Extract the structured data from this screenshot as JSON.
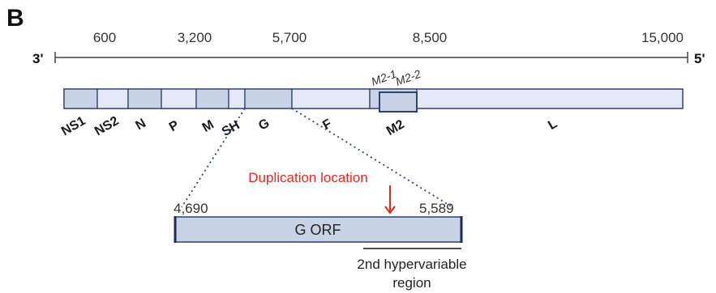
{
  "panel_label": "B",
  "scale": {
    "left_end": "3'",
    "right_end": "5'",
    "ticks": [
      "600",
      "3,200",
      "5,700",
      "8,500",
      "15,000"
    ]
  },
  "genes": [
    "NS1",
    "NS2",
    "N",
    "P",
    "M",
    "SH",
    "G",
    "F",
    "M2",
    "L"
  ],
  "m2_subgenes": [
    "M2-1",
    "M2-2"
  ],
  "g_orf": {
    "label": "G ORF",
    "start": "4,690",
    "end": "5,589"
  },
  "duplication": {
    "label": "Duplication location",
    "color": "#e8261c"
  },
  "hypervariable": {
    "line1": "2nd hypervariable",
    "line2": "region"
  },
  "colors": {
    "gene_fill_dark": "#c9d3e6",
    "gene_fill_light": "#e3e9f7",
    "outline": "#2e3f7a",
    "axis": "#444444"
  }
}
